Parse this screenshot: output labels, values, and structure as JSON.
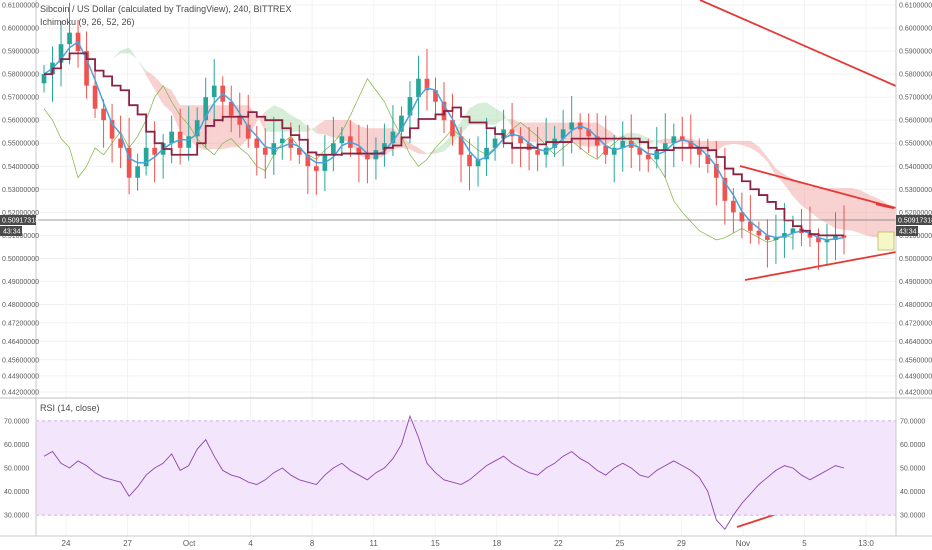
{
  "chart_data": {
    "type": "candlestick",
    "symbol_title": "Sibcoin / US Dollar (calculated by TradingView), 240, BITTREX",
    "indicator_label": "Ichimoku (9, 26, 52, 26)",
    "rsi_label": "RSI (14, close)",
    "price_axis": {
      "ticks": [
        "0.61000000",
        "0.60000000",
        "0.59000000",
        "0.58000000",
        "0.57000000",
        "0.56000000",
        "0.55000000",
        "0.54000000",
        "0.53000000",
        "0.52000000",
        "0.51000000",
        "0.50000000",
        "0.49000000",
        "0.48000000",
        "0.47200000",
        "0.46400000",
        "0.45600000",
        "0.44900000",
        "0.44200000"
      ],
      "ylim": [
        0.442,
        0.61
      ]
    },
    "rsi_axis": {
      "ticks": [
        "70.0000",
        "60.0000",
        "50.0000",
        "40.0000",
        "30.0000"
      ],
      "ylim": [
        22,
        78
      ],
      "band": [
        30,
        70
      ]
    },
    "x_ticks": [
      "24",
      "27",
      "Oct",
      "4",
      "8",
      "11",
      "15",
      "18",
      "22",
      "25",
      "29",
      "Nov",
      "5",
      "13:0"
    ],
    "last_price": "0.50917318",
    "countdown": "43:34",
    "colors": {
      "up": "#26a69a",
      "down": "#ef5350",
      "tenkan": "#4aa3df",
      "kijun": "#8b2242",
      "cloud_bull": "#a5d6a7",
      "cloud_bear": "#ef9a9a",
      "chikou": "#7cb342",
      "rsi_line": "#8e44ad",
      "rsi_band": "#f3e5fb",
      "trendline": "#e53935"
    },
    "series": {
      "close": [
        0.58,
        0.585,
        0.593,
        0.598,
        0.59,
        0.575,
        0.565,
        0.56,
        0.552,
        0.548,
        0.535,
        0.54,
        0.548,
        0.545,
        0.55,
        0.555,
        0.548,
        0.553,
        0.56,
        0.57,
        0.575,
        0.568,
        0.562,
        0.558,
        0.552,
        0.548,
        0.545,
        0.55,
        0.552,
        0.548,
        0.545,
        0.54,
        0.538,
        0.545,
        0.55,
        0.553,
        0.548,
        0.545,
        0.543,
        0.547,
        0.55,
        0.555,
        0.562,
        0.57,
        0.578,
        0.573,
        0.568,
        0.56,
        0.553,
        0.545,
        0.54,
        0.543,
        0.548,
        0.552,
        0.556,
        0.553,
        0.55,
        0.547,
        0.545,
        0.548,
        0.552,
        0.556,
        0.559,
        0.556,
        0.553,
        0.549,
        0.545,
        0.548,
        0.551,
        0.548,
        0.545,
        0.543,
        0.547,
        0.55,
        0.553,
        0.551,
        0.548,
        0.545,
        0.541,
        0.535,
        0.525,
        0.52,
        0.516,
        0.512,
        0.51,
        0.508,
        0.509,
        0.511,
        0.513,
        0.511,
        0.509,
        0.507,
        0.508,
        0.51,
        0.509
      ],
      "rsi": [
        55,
        57,
        52,
        50,
        53,
        51,
        48,
        46,
        45,
        44,
        38,
        42,
        47,
        50,
        52,
        56,
        49,
        51,
        58,
        62,
        55,
        49,
        47,
        46,
        44,
        43,
        45,
        48,
        50,
        47,
        45,
        44,
        43,
        47,
        50,
        52,
        49,
        47,
        45,
        48,
        50,
        54,
        60,
        72,
        63,
        52,
        48,
        45,
        44,
        43,
        45,
        48,
        51,
        53,
        55,
        52,
        50,
        48,
        47,
        50,
        52,
        55,
        57,
        54,
        52,
        49,
        47,
        50,
        52,
        50,
        47,
        46,
        49,
        51,
        53,
        51,
        49,
        46,
        40,
        28,
        24,
        30,
        35,
        39,
        43,
        46,
        49,
        51,
        50,
        47,
        45,
        47,
        49,
        51,
        50
      ]
    },
    "grid": true,
    "legend": "top-left"
  }
}
